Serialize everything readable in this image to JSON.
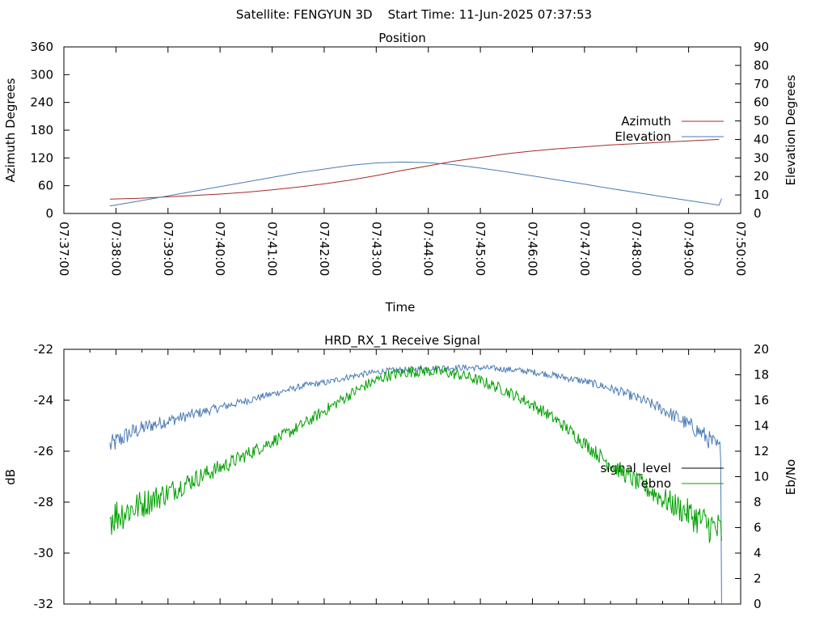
{
  "header": {
    "title": "Satellite: FENGYUN 3D    Start Time: 11-Jun-2025 07:37:53"
  },
  "chart_data": [
    {
      "type": "line",
      "title": "Position",
      "xlabel": "Time",
      "ylabel": "Azimuth Degrees",
      "y2label": "Elevation Degrees",
      "x_ticks": [
        "07:37:00",
        "07:38:00",
        "07:39:00",
        "07:40:00",
        "07:41:00",
        "07:42:00",
        "07:43:00",
        "07:44:00",
        "07:45:00",
        "07:46:00",
        "07:47:00",
        "07:48:00",
        "07:49:00",
        "07:50:00"
      ],
      "ylim": [
        0,
        360
      ],
      "y2lim": [
        0,
        90
      ],
      "y_ticks": [
        0,
        60,
        120,
        180,
        240,
        300,
        360
      ],
      "y2_ticks": [
        0,
        10,
        20,
        30,
        40,
        50,
        60,
        70,
        80,
        90
      ],
      "legend_position": "right",
      "series": [
        {
          "name": "Azimuth",
          "axis": "y",
          "color": "#a52a2a",
          "x": [
            "07:37:53",
            "07:38:30",
            "07:39:00",
            "07:39:30",
            "07:40:00",
            "07:40:30",
            "07:41:00",
            "07:41:30",
            "07:42:00",
            "07:42:30",
            "07:43:00",
            "07:43:30",
            "07:44:00",
            "07:44:30",
            "07:45:00",
            "07:45:30",
            "07:46:00",
            "07:46:30",
            "07:47:00",
            "07:47:30",
            "07:48:00",
            "07:48:30",
            "07:49:00",
            "07:49:35"
          ],
          "values": [
            31,
            33,
            36,
            39,
            42,
            46,
            51,
            57,
            64,
            72,
            82,
            93,
            103,
            113,
            121,
            129,
            135,
            140,
            144,
            148,
            151,
            154,
            157,
            160
          ]
        },
        {
          "name": "Elevation",
          "axis": "y2",
          "color": "#4a7ab5",
          "x": [
            "07:37:53",
            "07:38:30",
            "07:39:00",
            "07:39:30",
            "07:40:00",
            "07:40:30",
            "07:41:00",
            "07:41:30",
            "07:42:00",
            "07:42:30",
            "07:43:00",
            "07:43:30",
            "07:44:00",
            "07:44:30",
            "07:45:00",
            "07:45:30",
            "07:46:00",
            "07:46:30",
            "07:47:00",
            "07:47:30",
            "07:48:00",
            "07:48:30",
            "07:49:00",
            "07:49:35",
            "07:49:38"
          ],
          "values": [
            4,
            7,
            9.5,
            12,
            14.5,
            17,
            19.5,
            22,
            24,
            26,
            27.3,
            27.8,
            27.5,
            26.3,
            24.5,
            22.5,
            20.3,
            18,
            15.8,
            13.5,
            11.3,
            9.1,
            7,
            4.5,
            8
          ]
        }
      ]
    },
    {
      "type": "line",
      "title": "HRD_RX_1 Receive Signal",
      "ylabel": "dB",
      "y2label": "Eb/No",
      "ylim": [
        -32,
        -22
      ],
      "y2lim": [
        0,
        20
      ],
      "y_ticks": [
        -32,
        -30,
        -28,
        -26,
        -24,
        -22
      ],
      "y2_ticks": [
        0,
        2,
        4,
        6,
        8,
        10,
        12,
        14,
        16,
        18,
        20
      ],
      "legend_position": "right",
      "series": [
        {
          "name": "signal_level",
          "axis": "y",
          "color": "#4a7ab5",
          "x_start": "07:37:53",
          "x_end": "07:49:38",
          "values": [
            -25.8,
            -25.3,
            -25.0,
            -24.8,
            -24.6,
            -24.4,
            -24.2,
            -24.0,
            -23.8,
            -23.6,
            -23.4,
            -23.3,
            -23.1,
            -22.95,
            -22.85,
            -22.8,
            -22.75,
            -22.72,
            -22.72,
            -22.73,
            -22.78,
            -22.85,
            -22.95,
            -23.1,
            -23.25,
            -23.45,
            -23.7,
            -24.0,
            -24.35,
            -24.8,
            -25.3,
            -26.0
          ]
        },
        {
          "name": "ebno",
          "axis": "y2",
          "color": "#00a000",
          "x_start": "07:37:53",
          "x_end": "07:49:38",
          "values": [
            6.8,
            7.4,
            8.1,
            8.8,
            9.6,
            10.3,
            11.0,
            11.8,
            12.6,
            13.4,
            14.3,
            15.3,
            16.3,
            17.2,
            17.9,
            18.2,
            18.3,
            18.2,
            17.9,
            17.4,
            16.8,
            16.0,
            15.1,
            14.0,
            12.7,
            11.4,
            10.3,
            9.3,
            8.3,
            7.4,
            6.5,
            5.6
          ]
        }
      ]
    }
  ]
}
